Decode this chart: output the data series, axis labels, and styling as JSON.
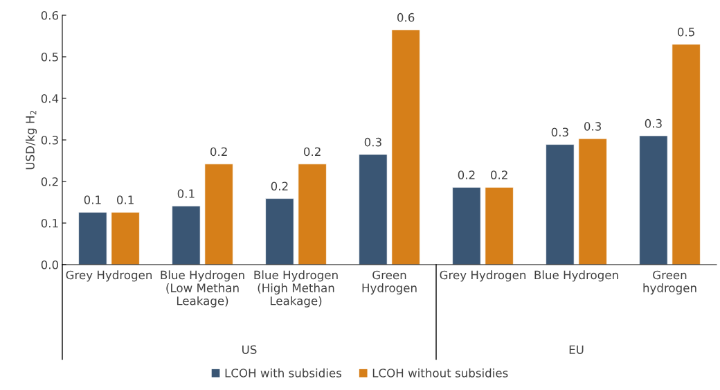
{
  "chart_data": {
    "type": "bar",
    "categories": [
      "Grey Hydrogen",
      "Blue Hydrogen\n(Low Methan\nLeakage)",
      "Blue Hydrogen\n(High Methan\nLeakage)",
      "Green\nHydrogen",
      "Grey Hydrogen",
      "Blue Hydrogen",
      "Green\nhydrogen"
    ],
    "ylabel": "USD/kg H$_{2}$",
    "series": [
      {
        "name": "LCOH with subsidies",
        "color": "#3a5674",
        "values": [
          0.126,
          0.141,
          0.159,
          0.265,
          0.186,
          0.289,
          0.31
        ],
        "value_labels": [
          "0.1",
          "0.1",
          "0.2",
          "0.3",
          "0.2",
          "0.3",
          "0.3"
        ]
      },
      {
        "name": "LCOH without subsidies",
        "color": "#d67f19",
        "values": [
          0.126,
          0.242,
          0.242,
          0.565,
          0.186,
          0.303,
          0.53
        ],
        "value_labels": [
          "0.1",
          "0.2",
          "0.2",
          "0.6",
          "0.2",
          "0.3",
          "0.5"
        ]
      }
    ],
    "annotations": [
      "US",
      "EU"
    ],
    "ylim": [
      0,
      0.6
    ],
    "yticks": [
      {
        "value": 0,
        "label": "0.0"
      },
      0.1,
      0.2,
      0.3,
      0.4,
      0.5,
      0.6
    ],
    "grid": false,
    "legend": "bottom"
  }
}
